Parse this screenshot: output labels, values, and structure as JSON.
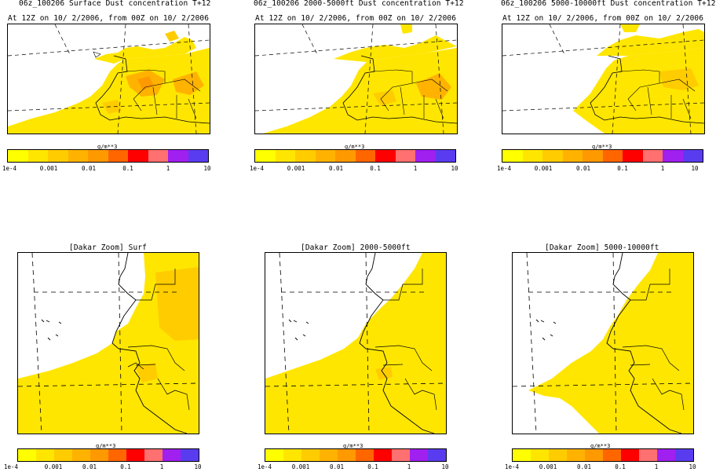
{
  "colors": [
    "#ffff00",
    "#ffe600",
    "#ffcc00",
    "#ffb300",
    "#ff9900",
    "#ff6600",
    "#ff0000",
    "#ff7070",
    "#a020f0",
    "#5a3cf0"
  ],
  "top_panels": [
    {
      "title": "06z_100206 Surface Dust concentration T+12",
      "subtitle": "At 12Z on 10/ 2/2006, from 00Z on 10/ 2/2006"
    },
    {
      "title": "06z_100206 2000-5000ft Dust concentration T+12",
      "subtitle": "At 12Z on 10/ 2/2006, from 00Z on 10/ 2/2006"
    },
    {
      "title": "06z_100206 5000-10000ft Dust concentration T+12",
      "subtitle": "At 12Z on 10/ 2/2006, from 00Z on 10/ 2/2006"
    }
  ],
  "bottom_panels": [
    {
      "title": "[Dakar Zoom] Surf"
    },
    {
      "title": "[Dakar Zoom] 2000-5000ft"
    },
    {
      "title": "[Dakar Zoom] 5000-10000ft"
    }
  ],
  "colorbar": {
    "unit": "g/m**3",
    "ticks": [
      "1e-4",
      "0.001",
      "0.01",
      "0.1",
      "1",
      "10"
    ]
  }
}
